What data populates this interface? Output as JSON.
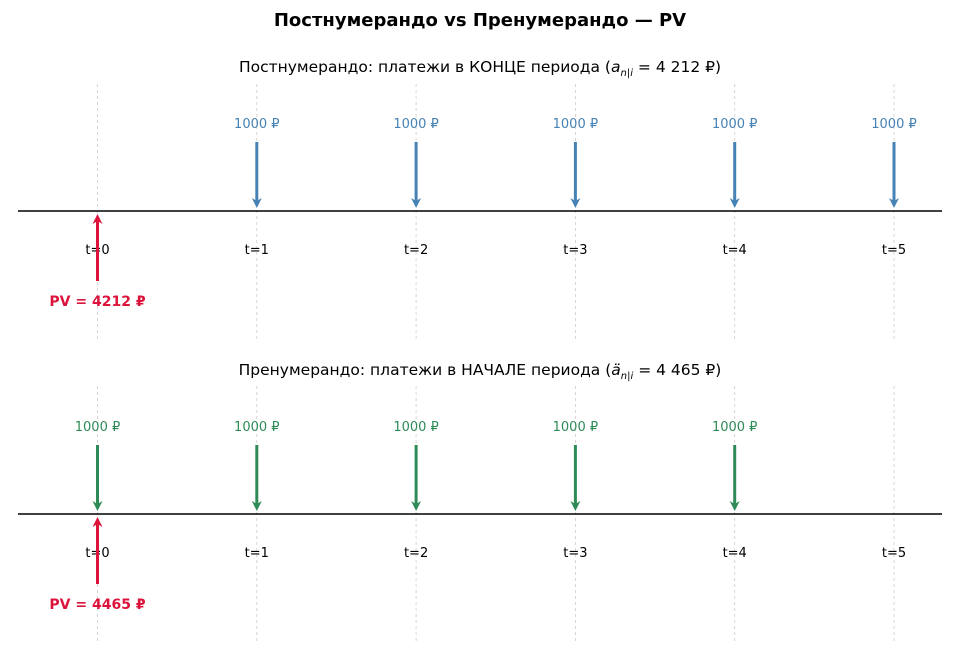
{
  "title": "Постнумерандо vs Пренумерандо — PV",
  "colors": {
    "post": "#4682b4",
    "pre": "#2e8b57",
    "pv": "#dc143c",
    "grid": "#cccccc",
    "axis": "#000000"
  },
  "chart_data": [
    {
      "type": "timeline",
      "title_prefix": "Постнумерандо: платежи в КОНЦЕ периода  (",
      "title_symbol": "a",
      "title_subscript": "n|i",
      "title_suffix": " = 4 212 ₽)",
      "periods": [
        "t=0",
        "t=1",
        "t=2",
        "t=3",
        "t=4",
        "t=5"
      ],
      "payments": [
        {
          "t": 1,
          "label": "1000 ₽",
          "value": 1000
        },
        {
          "t": 2,
          "label": "1000 ₽",
          "value": 1000
        },
        {
          "t": 3,
          "label": "1000 ₽",
          "value": 1000
        },
        {
          "t": 4,
          "label": "1000 ₽",
          "value": 1000
        },
        {
          "t": 5,
          "label": "1000 ₽",
          "value": 1000
        }
      ],
      "pv": {
        "t": 0,
        "label": "PV = 4212 ₽",
        "value": 4212
      },
      "color_key": "post"
    },
    {
      "type": "timeline",
      "title_prefix": "Пренумерандо: платежи в НАЧАЛЕ периода  (",
      "title_symbol": "ä",
      "title_subscript": "n|i",
      "title_suffix": " = 4 465 ₽)",
      "periods": [
        "t=0",
        "t=1",
        "t=2",
        "t=3",
        "t=4",
        "t=5"
      ],
      "payments": [
        {
          "t": 0,
          "label": "1000 ₽",
          "value": 1000
        },
        {
          "t": 1,
          "label": "1000 ₽",
          "value": 1000
        },
        {
          "t": 2,
          "label": "1000 ₽",
          "value": 1000
        },
        {
          "t": 3,
          "label": "1000 ₽",
          "value": 1000
        },
        {
          "t": 4,
          "label": "1000 ₽",
          "value": 1000
        }
      ],
      "pv": {
        "t": 0,
        "label": "PV = 4465 ₽",
        "value": 4465
      },
      "color_key": "pre"
    }
  ]
}
